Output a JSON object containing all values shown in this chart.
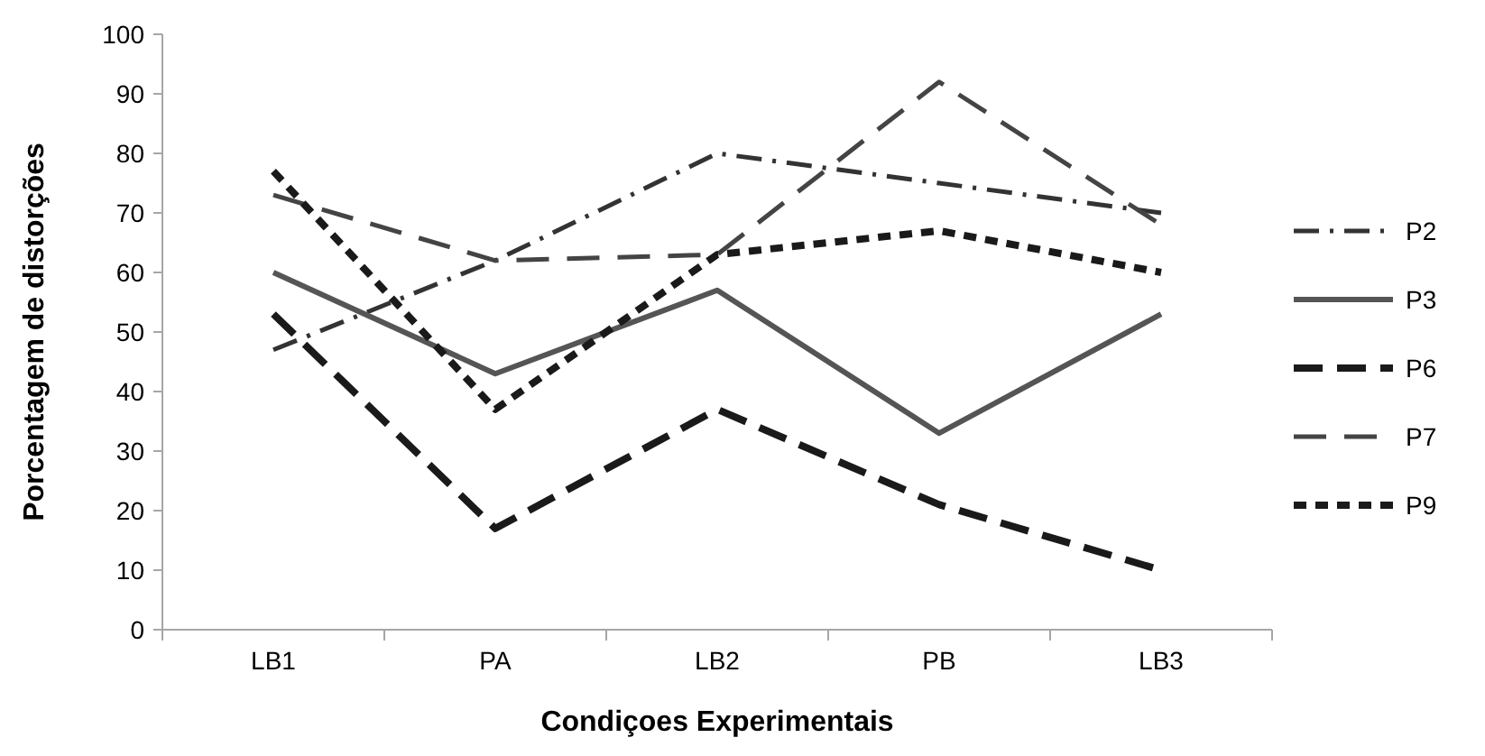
{
  "chart_data": {
    "type": "line",
    "xlabel": "Condiçoes  Experimentais",
    "ylabel": "Porcentagem de distorções",
    "categories": [
      "LB1",
      "PA",
      "LB2",
      "PB",
      "LB3"
    ],
    "series": [
      {
        "name": "P2",
        "color": "#333333",
        "line_style": "dashed",
        "values": [
          47,
          62,
          80,
          75,
          70
        ]
      },
      {
        "name": "P3",
        "color": "#555555",
        "line_style": "solid",
        "values": [
          60,
          43,
          57,
          33,
          53
        ]
      },
      {
        "name": "P6",
        "color": "#1a1a1a",
        "line_style": "dashed",
        "values": [
          53,
          17,
          37,
          21,
          10
        ]
      },
      {
        "name": "P7",
        "color": "#444444",
        "line_style": "dashed",
        "values": [
          73,
          62,
          63,
          92,
          68
        ]
      },
      {
        "name": "P9",
        "color": "#1a1a1a",
        "line_style": "dashed",
        "values": [
          77,
          37,
          63,
          67,
          60
        ]
      }
    ],
    "ylim": [
      0,
      100
    ],
    "yticks": [
      0,
      10,
      20,
      30,
      40,
      50,
      60,
      70,
      80,
      90,
      100
    ],
    "legend": "right",
    "marker": "none",
    "grid": false
  }
}
